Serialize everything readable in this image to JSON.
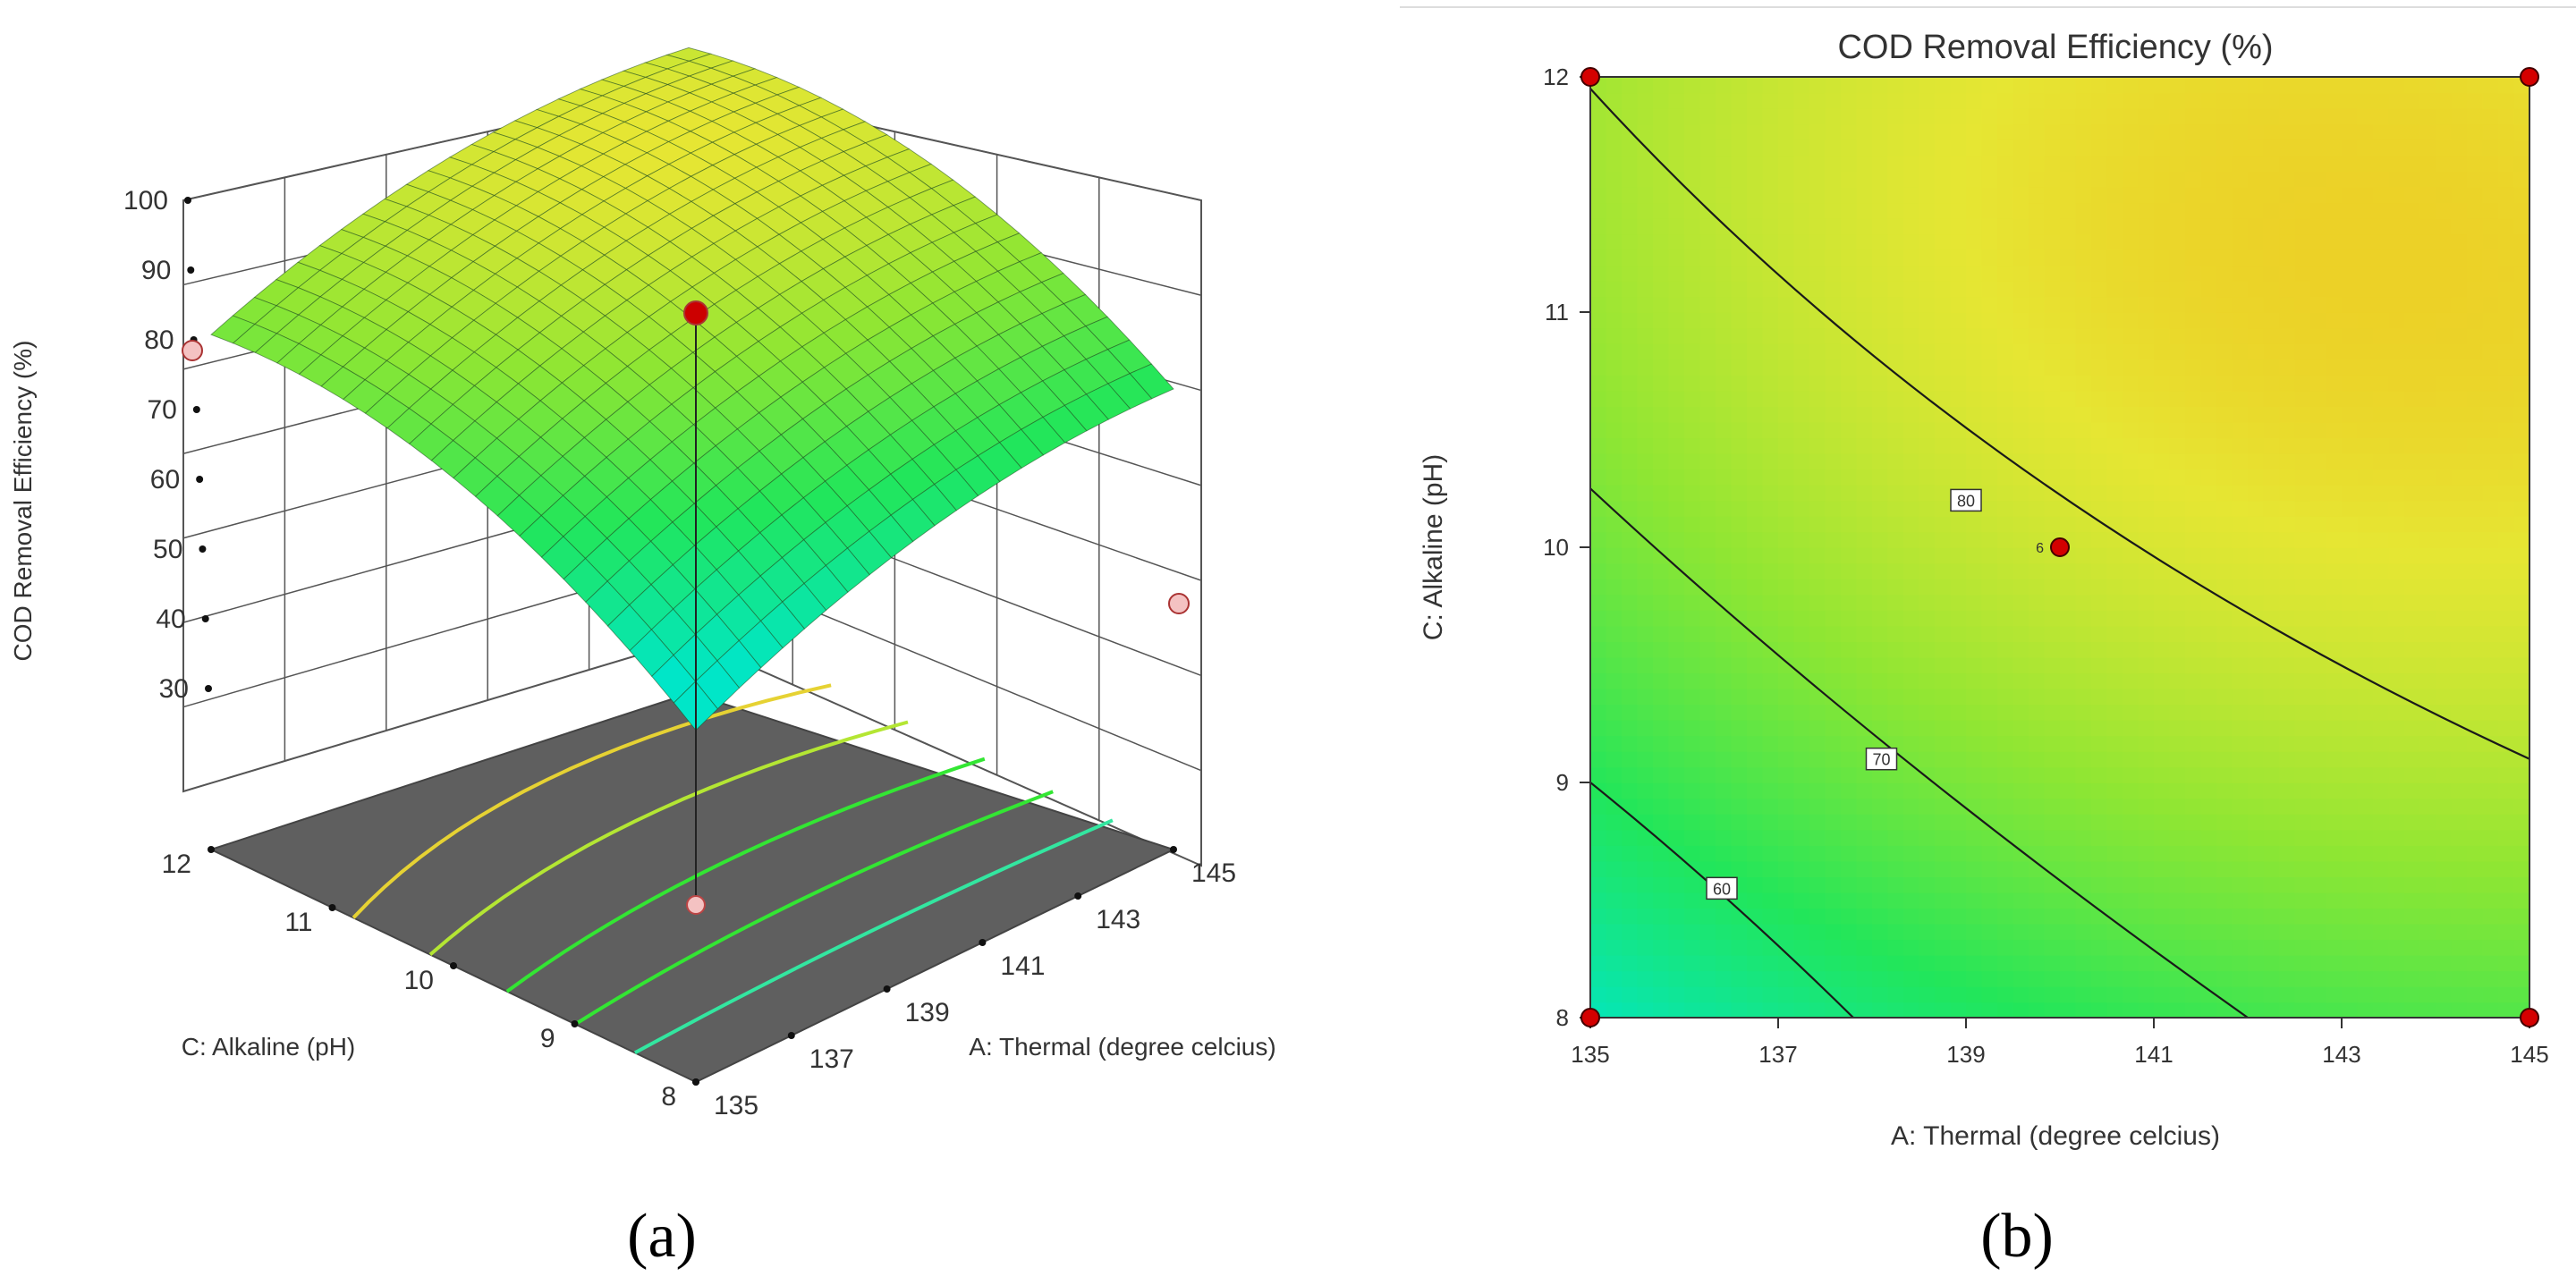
{
  "chart_data": [
    {
      "panel": "(a)",
      "type": "surface3d",
      "zlabel": "COD Removal Efficiency (%)",
      "xlabel": "A: Thermal (degree celcius)",
      "ylabel": "C: Alkaline (pH)",
      "x_ticks": [
        "135",
        "137",
        "139",
        "141",
        "143",
        "145"
      ],
      "y_ticks": [
        "8",
        "9",
        "10",
        "11",
        "12"
      ],
      "z_ticks": [
        "30",
        "40",
        "50",
        "60",
        "70",
        "80",
        "90",
        "100"
      ],
      "xlim": [
        135,
        145
      ],
      "ylim": [
        8,
        12
      ],
      "zlim": [
        30,
        100
      ],
      "model": {
        "center": [
          140,
          10
        ],
        "z_center": 82.5,
        "z_min_corner": 56,
        "max_z": 97
      },
      "design_points": [
        {
          "x": 140,
          "y": 10,
          "z": 82.5,
          "color": "#cc0000"
        },
        {
          "x": 135,
          "y": 12,
          "z": 78,
          "color": "#f4c2c2"
        },
        {
          "x": 145,
          "y": 8,
          "z": 56,
          "color": "#f4c2c2"
        }
      ],
      "colors": [
        "#00e6b8",
        "#33e633",
        "#e6e633",
        "#ff8c00"
      ]
    },
    {
      "panel": "(b)",
      "type": "contour",
      "title": "COD Removal Efficiency (%)",
      "xlabel": "A: Thermal (degree celcius)",
      "ylabel": "C: Alkaline (pH)",
      "x_ticks": [
        "135",
        "137",
        "139",
        "141",
        "143",
        "145"
      ],
      "y_ticks": [
        "8",
        "9",
        "10",
        "11",
        "12"
      ],
      "xlim": [
        135,
        145
      ],
      "ylim": [
        8,
        12
      ],
      "contours": [
        {
          "level": 60,
          "label": "60",
          "points": [
            [
              135,
              9.0
            ],
            [
              136.4,
              8.55
            ],
            [
              137.8,
              8.0
            ]
          ]
        },
        {
          "level": 70,
          "label": "70",
          "points": [
            [
              135,
              10.25
            ],
            [
              138.1,
              9.1
            ],
            [
              142.0,
              8.0
            ]
          ]
        },
        {
          "level": 80,
          "label": "80",
          "points": [
            [
              135,
              11.95
            ],
            [
              139.0,
              10.2
            ],
            [
              145.0,
              9.1
            ]
          ]
        }
      ],
      "contour_labels": [
        {
          "text": "60",
          "x": 136.4,
          "y": 8.55
        },
        {
          "text": "70",
          "x": 138.1,
          "y": 9.1
        },
        {
          "text": "80",
          "x": 139.0,
          "y": 10.2
        }
      ],
      "design_points": [
        {
          "x": 135,
          "y": 12
        },
        {
          "x": 145,
          "y": 12
        },
        {
          "x": 135,
          "y": 8
        },
        {
          "x": 145,
          "y": 8
        },
        {
          "x": 140,
          "y": 10,
          "label": "6"
        }
      ],
      "colors": [
        "#00e6b8",
        "#33e633",
        "#e6e633",
        "#ff8c00"
      ]
    }
  ],
  "panel_labels": {
    "a": "(a)",
    "b": "(b)"
  }
}
